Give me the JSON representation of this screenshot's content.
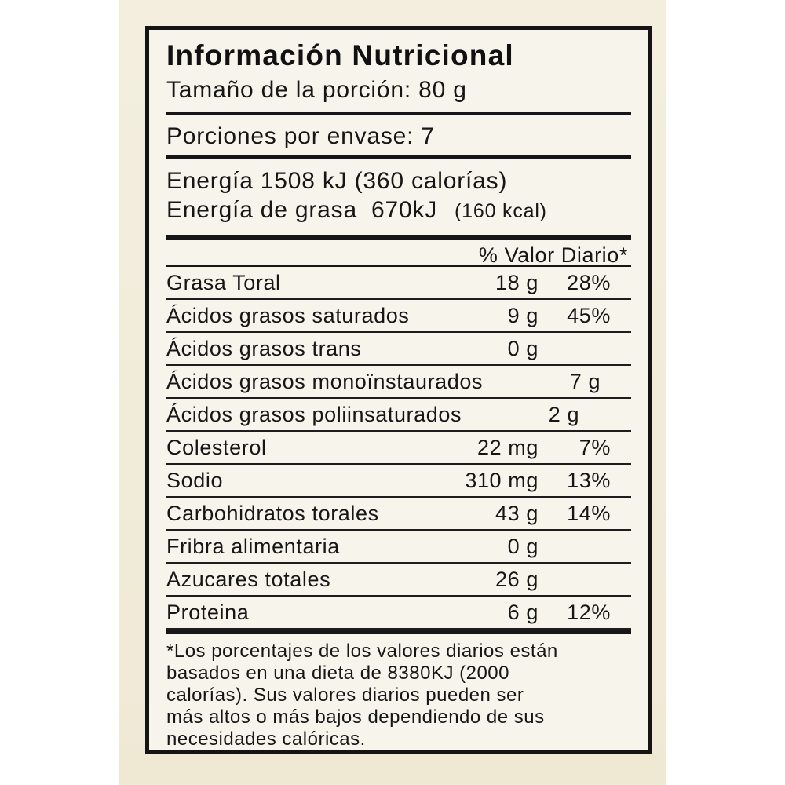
{
  "colors": {
    "package_background": "#f1ecda",
    "label_background": "#f7f4ec",
    "ink": "#161616"
  },
  "label": {
    "title": "Información Nutricional",
    "serving_size": "Tamaño de la porción: 80 g",
    "servings_per_container": "Porciones por envase: 7",
    "energy": {
      "line1": "Energía 1508 kJ (360 calorías)",
      "line2_label": "Energía de grasa",
      "line2_value": "670kJ",
      "line2_note": "(160 kcal)"
    },
    "daily_value_header": "% Valor Diario*",
    "rows": [
      {
        "name": "Grasa Toral",
        "amount": "18 g",
        "dv": "28%"
      },
      {
        "name": "Ácidos grasos saturados",
        "amount": "9 g",
        "dv": "45%"
      },
      {
        "name": "Ácidos grasos trans",
        "amount": "0 g",
        "dv": ""
      },
      {
        "name": "Ácidos grasos monoïnstaurados",
        "amount": "7 g",
        "dv": ""
      },
      {
        "name": "Ácidos grasos poliinsaturados",
        "amount": "2 g",
        "dv": ""
      },
      {
        "name": "Colesterol",
        "amount": "22 mg",
        "dv": "7%"
      },
      {
        "name": "Sodio",
        "amount": "310 mg",
        "dv": "13%"
      },
      {
        "name": "Carbohidratos torales",
        "amount": "43 g",
        "dv": "14%"
      },
      {
        "name": "Fribra alimentaria",
        "amount": "0 g",
        "dv": ""
      },
      {
        "name": "Azucares totales",
        "amount": "26 g",
        "dv": ""
      },
      {
        "name": "Proteina",
        "amount": "6 g",
        "dv": "12%"
      }
    ],
    "footnote_lines": [
      "*Los porcentajes de los valores diarios están",
      "basados en una dieta de 8380KJ (2000",
      "calorías). Sus valores diarios pueden ser",
      "más altos o más bajos dependiendo de sus",
      "necesidades calóricas."
    ]
  }
}
